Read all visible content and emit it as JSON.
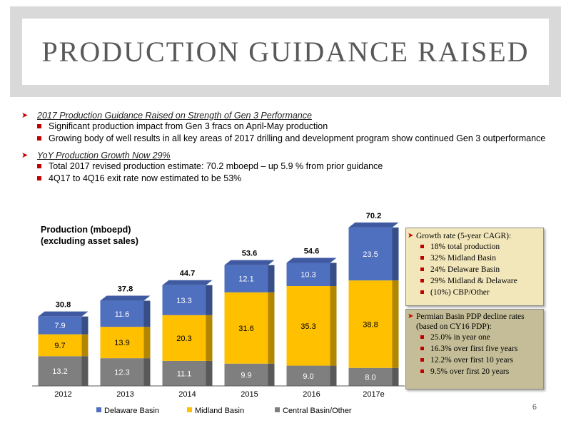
{
  "title": "PRODUCTION GUIDANCE RAISED",
  "bullets": [
    {
      "heading": "2017 Production Guidance Raised on Strength of Gen 3 Performance",
      "items": [
        "Significant production impact from Gen 3 fracs on April-May production",
        "Growing body of well results in all key areas of 2017 drilling and development program show continued Gen 3 outperformance"
      ]
    },
    {
      "heading": "YoY Production Growth Now 29%",
      "items": [
        "Total 2017 revised production estimate: 70.2 mboepd – up 5.9 % from prior guidance",
        "4Q17 to 4Q16 exit rate now estimated to be 53%"
      ]
    }
  ],
  "chart_data": {
    "type": "bar",
    "stacked": true,
    "title": "Production (mboepd)\n(excluding asset sales)",
    "categories": [
      "2012",
      "2013",
      "2014",
      "2015",
      "2016",
      "2017e"
    ],
    "series": [
      {
        "name": "Central Basin/Other",
        "color": "#7f7f7f",
        "values": [
          13.2,
          12.3,
          11.1,
          9.9,
          9.0,
          8.0
        ]
      },
      {
        "name": "Midland Basin",
        "color": "#ffc000",
        "values": [
          9.7,
          13.9,
          20.3,
          31.6,
          35.3,
          38.8
        ]
      },
      {
        "name": "Delaware Basin",
        "color": "#4f6fbf",
        "values": [
          7.9,
          11.6,
          13.3,
          12.1,
          10.3,
          23.5
        ]
      }
    ],
    "totals": [
      "30.8",
      "37.8",
      "44.7",
      "53.6",
      "54.6",
      "70.2"
    ],
    "legend_order": [
      "Delaware Basin",
      "Midland Basin",
      "Central Basin/Other"
    ],
    "legend_position": "bottom",
    "ylim": [
      0,
      75
    ],
    "grid": false
  },
  "callouts": [
    {
      "heading": "Growth rate (5-year CAGR):",
      "items": [
        "18% total production",
        "32% Midland Basin",
        "24% Delaware Basin",
        "29% Midland & Delaware",
        "(10%) CBP/Other"
      ],
      "bg": "#f2e7bb"
    },
    {
      "heading": "Permian Basin PDP decline rates (based on CY16 PDP):",
      "items": [
        "25.0% in year one",
        "16.3% over first five years",
        "12.2% over first 10 years",
        "9.5% over first 20 years"
      ],
      "bg": "#c4bd97"
    }
  ],
  "page_number": "6"
}
